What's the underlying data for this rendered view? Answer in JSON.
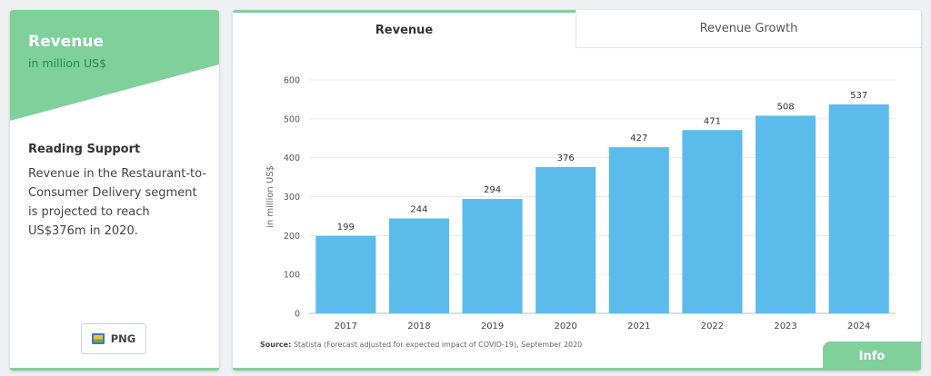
{
  "left_panel": {
    "title": "Revenue",
    "subtitle": "in million US$",
    "reading_support_title": "Reading Support",
    "reading_support_text": "Revenue in the Restaurant-to-Consumer Delivery segment is projected to reach US$376m in 2020.",
    "png_button_label": "PNG"
  },
  "tabs": [
    {
      "label": "Revenue",
      "active": true
    },
    {
      "label": "Revenue Growth",
      "active": false
    }
  ],
  "source": {
    "label": "Source:",
    "text": "Statista (Forecast adjusted for expected impact of COVID-19), September 2020"
  },
  "info_button_label": "Info",
  "colors": {
    "accent": "#80d09c",
    "bar": "#5bbcec",
    "subtitle_green": "#1f8a4d"
  },
  "chart_data": {
    "type": "bar",
    "categories": [
      "2017",
      "2018",
      "2019",
      "2020",
      "2021",
      "2022",
      "2023",
      "2024"
    ],
    "values": [
      199,
      244,
      294,
      376,
      427,
      471,
      508,
      537
    ],
    "data_labels": [
      "199",
      "244",
      "294",
      "376",
      "427",
      "471",
      "508",
      "537"
    ],
    "xlabel": "",
    "ylabel": "in million US$",
    "ylim": [
      0,
      600
    ],
    "yticks": [
      0,
      100,
      200,
      300,
      400,
      500,
      600
    ],
    "grid": true
  }
}
